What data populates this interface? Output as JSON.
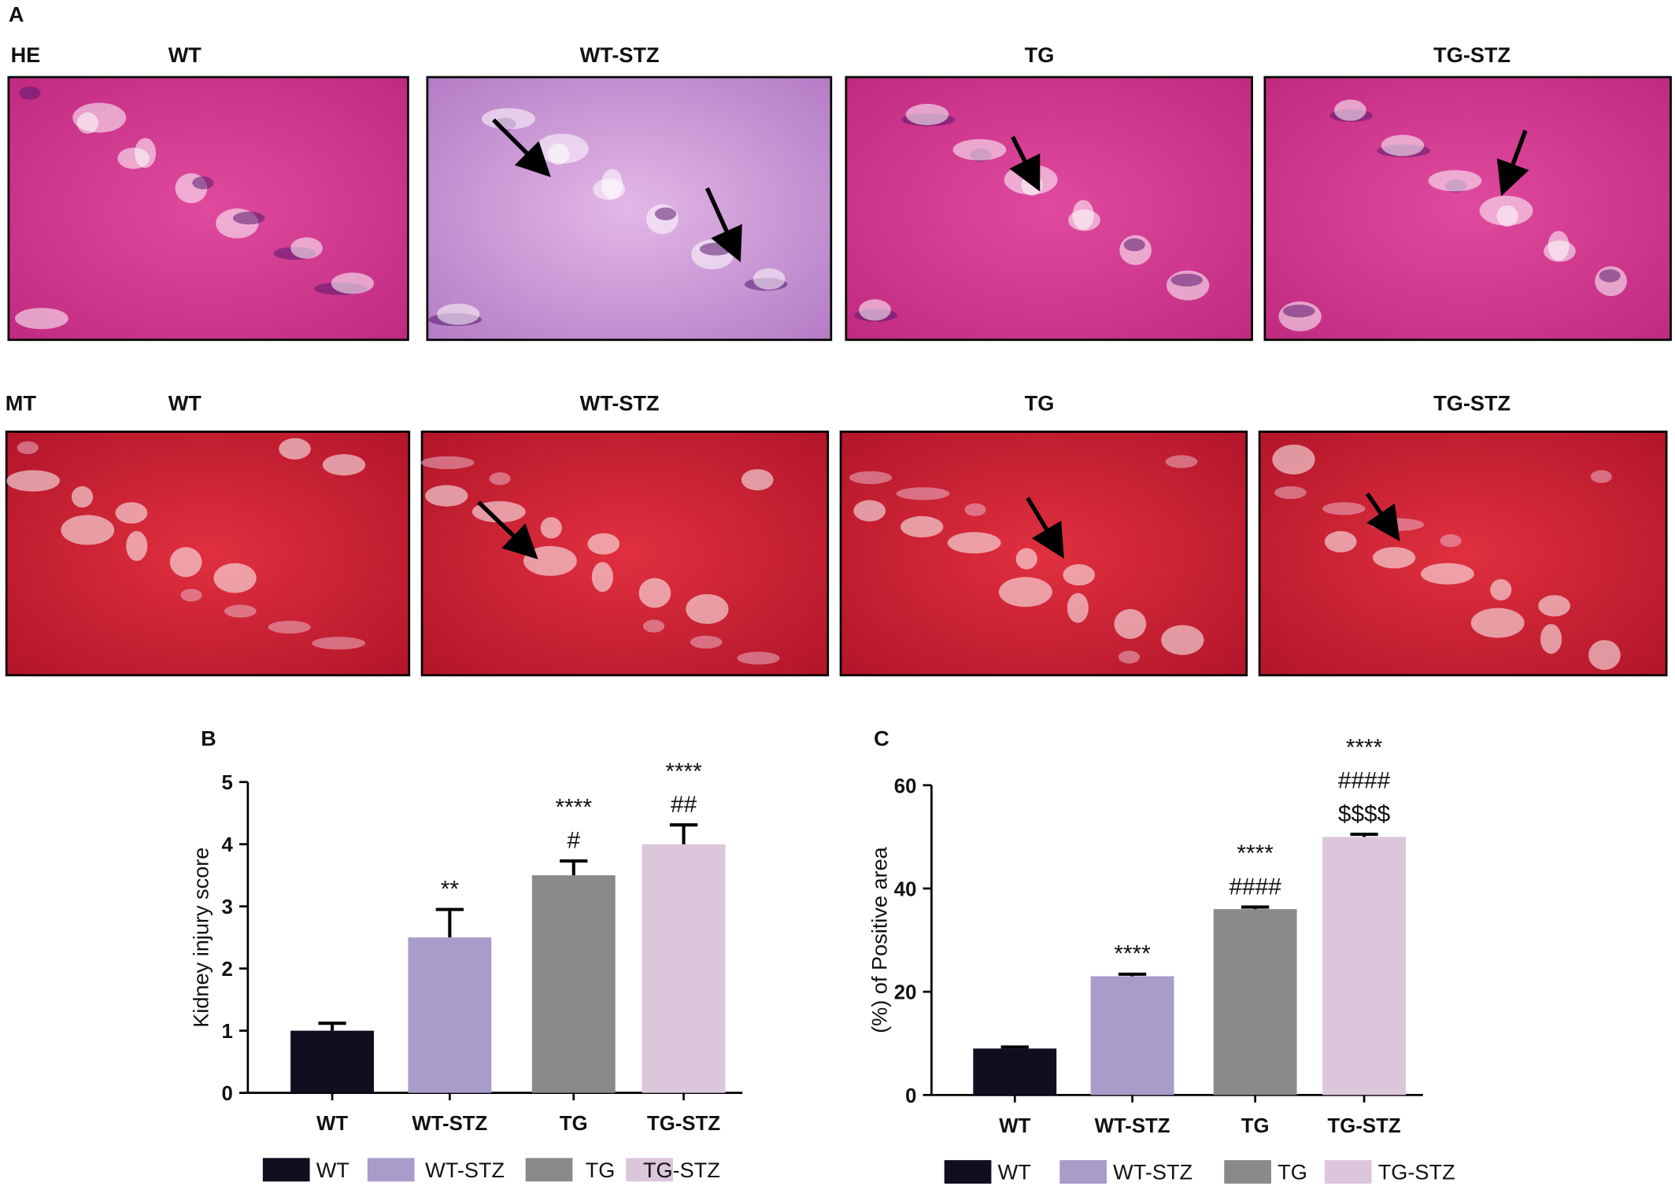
{
  "panels": {
    "A": "A",
    "rows": [
      {
        "stain": "HE",
        "titles": [
          "WT",
          "WT-STZ",
          "TG",
          "TG-STZ"
        ]
      },
      {
        "stain": "MT",
        "titles": [
          "WT",
          "WT-STZ",
          "TG",
          "TG-STZ"
        ]
      }
    ]
  },
  "chart_data": [
    {
      "type": "bar",
      "panel": "B",
      "ylabel": "Kidney injury score",
      "categories": [
        "WT",
        "WT-STZ",
        "TG",
        "TG-STZ"
      ],
      "values": [
        1,
        2.5,
        3.5,
        4
      ],
      "errors": [
        0.12,
        0.45,
        0.23,
        0.31
      ],
      "colors": [
        "#120d1f",
        "#a99bca",
        "#8a8a8a",
        "#dcc6dc"
      ],
      "annotations": [
        [],
        [
          "**"
        ],
        [
          "****",
          "#"
        ],
        [
          "****",
          "##"
        ]
      ],
      "ylim": [
        0,
        5
      ],
      "yticks": [
        0,
        1,
        2,
        3,
        4,
        5
      ],
      "legend": "bottom"
    },
    {
      "type": "bar",
      "panel": "C",
      "ylabel": "(%) of Positive area",
      "categories": [
        "WT",
        "WT-STZ",
        "TG",
        "TG-STZ"
      ],
      "values": [
        9,
        23,
        36,
        50
      ],
      "errors": [
        0.3,
        0.4,
        0.4,
        0.5
      ],
      "colors": [
        "#120d1f",
        "#a99bca",
        "#8a8a8a",
        "#dcc6dc"
      ],
      "annotations": [
        [],
        [
          "****"
        ],
        [
          "****",
          "####"
        ],
        [
          "****",
          "####",
          "$$$$"
        ]
      ],
      "ylim": [
        0,
        60
      ],
      "yticks": [
        0,
        20,
        40,
        60
      ],
      "legend": "bottom"
    }
  ]
}
